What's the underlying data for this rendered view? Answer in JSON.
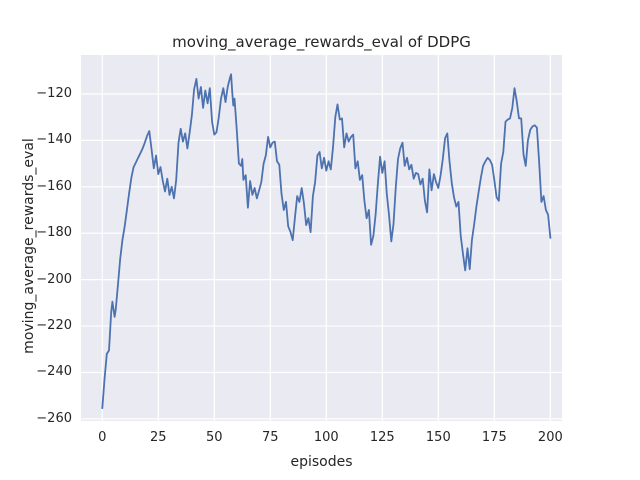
{
  "figure": {
    "background": "#ffffff"
  },
  "chart_data": {
    "type": "line",
    "title": "moving_average_rewards_eval of DDPG",
    "xlabel": "episodes",
    "ylabel": "moving_average_rewards_eval",
    "x_ticks": [
      0,
      25,
      50,
      75,
      100,
      125,
      150,
      175,
      200
    ],
    "x_tick_labels": [
      "0",
      "25",
      "50",
      "75",
      "100",
      "125",
      "150",
      "175",
      "200"
    ],
    "y_ticks": [
      -120,
      -140,
      -160,
      -180,
      -200,
      -220,
      -240,
      -260
    ],
    "y_tick_labels": [
      "−120",
      "−140",
      "−160",
      "−180",
      "−200",
      "−220",
      "−240",
      "−260"
    ],
    "xlim": [
      -9.5,
      205.2
    ],
    "ylim": [
      -260.9,
      -103.2
    ],
    "grid": true,
    "legend": "none",
    "plot_bg": "#eaeaf2",
    "grid_color": "#ffffff",
    "line_color": "#4c72b0",
    "text_color": "#262626",
    "series": [
      {
        "name": "moving_average_rewards_eval",
        "points": [
          [
            0,
            -255.4
          ],
          [
            1,
            -243
          ],
          [
            2,
            -232
          ],
          [
            3,
            -230.5
          ],
          [
            4,
            -214
          ],
          [
            4.5,
            -209.5
          ],
          [
            5.5,
            -216
          ],
          [
            6,
            -213
          ],
          [
            7,
            -202
          ],
          [
            8,
            -191
          ],
          [
            9,
            -183
          ],
          [
            10,
            -177
          ],
          [
            11,
            -170
          ],
          [
            12,
            -162.5
          ],
          [
            13,
            -156
          ],
          [
            14,
            -151.5
          ],
          [
            15,
            -149.5
          ],
          [
            16,
            -147.5
          ],
          [
            17,
            -145.5
          ],
          [
            18,
            -143.5
          ],
          [
            19,
            -141
          ],
          [
            20,
            -138
          ],
          [
            21,
            -136
          ],
          [
            22,
            -144
          ],
          [
            23,
            -152
          ],
          [
            24,
            -146.5
          ],
          [
            25,
            -154.5
          ],
          [
            26,
            -151.5
          ],
          [
            27,
            -157.5
          ],
          [
            28,
            -162
          ],
          [
            29,
            -156.5
          ],
          [
            30,
            -163.5
          ],
          [
            31,
            -160
          ],
          [
            32,
            -165
          ],
          [
            33,
            -157
          ],
          [
            34,
            -141
          ],
          [
            35,
            -135
          ],
          [
            36,
            -140.5
          ],
          [
            37,
            -137
          ],
          [
            38,
            -143.5
          ],
          [
            39,
            -136.5
          ],
          [
            40,
            -129
          ],
          [
            41,
            -118
          ],
          [
            42,
            -113.5
          ],
          [
            43,
            -122
          ],
          [
            44,
            -117
          ],
          [
            45,
            -126
          ],
          [
            46,
            -118.5
          ],
          [
            47,
            -124
          ],
          [
            48,
            -117.5
          ],
          [
            49,
            -132
          ],
          [
            50,
            -137.5
          ],
          [
            51,
            -136.5
          ],
          [
            52,
            -130
          ],
          [
            53,
            -122
          ],
          [
            54,
            -117.5
          ],
          [
            55,
            -123.5
          ],
          [
            56,
            -117
          ],
          [
            57,
            -113
          ],
          [
            57.5,
            -111.5
          ],
          [
            58,
            -119
          ],
          [
            58.5,
            -125
          ],
          [
            59,
            -122
          ],
          [
            60,
            -135
          ],
          [
            61,
            -150
          ],
          [
            62,
            -151
          ],
          [
            62.5,
            -148
          ],
          [
            63,
            -157
          ],
          [
            64,
            -155
          ],
          [
            65,
            -169
          ],
          [
            66,
            -157.5
          ],
          [
            67,
            -163.5
          ],
          [
            68,
            -160.5
          ],
          [
            69,
            -165
          ],
          [
            70,
            -161.5
          ],
          [
            71,
            -158
          ],
          [
            72,
            -150
          ],
          [
            73,
            -146.5
          ],
          [
            74,
            -138.5
          ],
          [
            75,
            -143
          ],
          [
            76,
            -141
          ],
          [
            77,
            -140.5
          ],
          [
            78,
            -149
          ],
          [
            79,
            -150.5
          ],
          [
            80,
            -163
          ],
          [
            81,
            -170
          ],
          [
            82,
            -166.5
          ],
          [
            83,
            -177
          ],
          [
            84,
            -179.5
          ],
          [
            85,
            -183
          ],
          [
            86,
            -173
          ],
          [
            87,
            -164
          ],
          [
            88,
            -166.5
          ],
          [
            89,
            -160.5
          ],
          [
            90,
            -167
          ],
          [
            91,
            -176.5
          ],
          [
            92,
            -173.5
          ],
          [
            93,
            -179.5
          ],
          [
            94,
            -164
          ],
          [
            95,
            -158
          ],
          [
            96,
            -146.5
          ],
          [
            97,
            -145
          ],
          [
            98,
            -152
          ],
          [
            99,
            -147.5
          ],
          [
            100,
            -153
          ],
          [
            101,
            -149
          ],
          [
            102,
            -152.5
          ],
          [
            103,
            -143
          ],
          [
            104,
            -130
          ],
          [
            105,
            -124.5
          ],
          [
            106,
            -131
          ],
          [
            107,
            -130.5
          ],
          [
            108,
            -143
          ],
          [
            109,
            -137
          ],
          [
            110,
            -140.5
          ],
          [
            111,
            -138.5
          ],
          [
            112,
            -137.5
          ],
          [
            113,
            -152
          ],
          [
            114,
            -149
          ],
          [
            115,
            -157
          ],
          [
            116,
            -155
          ],
          [
            117,
            -166
          ],
          [
            118,
            -173.5
          ],
          [
            119,
            -170
          ],
          [
            120,
            -185
          ],
          [
            121,
            -181
          ],
          [
            122,
            -172
          ],
          [
            123,
            -159
          ],
          [
            124,
            -147
          ],
          [
            125,
            -154
          ],
          [
            126,
            -149
          ],
          [
            127,
            -163
          ],
          [
            128,
            -172
          ],
          [
            129,
            -183.5
          ],
          [
            130,
            -176
          ],
          [
            131,
            -160
          ],
          [
            132,
            -148
          ],
          [
            133,
            -143.5
          ],
          [
            134,
            -141
          ],
          [
            135,
            -151
          ],
          [
            136,
            -147.5
          ],
          [
            137,
            -152.5
          ],
          [
            138,
            -150.5
          ],
          [
            139,
            -156.5
          ],
          [
            140,
            -154
          ],
          [
            141,
            -154.5
          ],
          [
            142,
            -159
          ],
          [
            143,
            -156.5
          ],
          [
            144,
            -166
          ],
          [
            145,
            -171
          ],
          [
            146,
            -152.5
          ],
          [
            147,
            -161.5
          ],
          [
            148,
            -154.5
          ],
          [
            149,
            -158
          ],
          [
            150,
            -160.5
          ],
          [
            151,
            -155
          ],
          [
            152,
            -148
          ],
          [
            153,
            -139
          ],
          [
            154,
            -137
          ],
          [
            155,
            -149
          ],
          [
            156,
            -158.5
          ],
          [
            157,
            -164.5
          ],
          [
            158,
            -168.5
          ],
          [
            159,
            -166.5
          ],
          [
            160,
            -181
          ],
          [
            161,
            -189
          ],
          [
            162,
            -196
          ],
          [
            163,
            -186.5
          ],
          [
            164,
            -195.5
          ],
          [
            165,
            -183
          ],
          [
            166,
            -176
          ],
          [
            167,
            -168.5
          ],
          [
            168,
            -162
          ],
          [
            169,
            -156
          ],
          [
            170,
            -151
          ],
          [
            171,
            -149
          ],
          [
            172,
            -147.5
          ],
          [
            173,
            -148.5
          ],
          [
            174,
            -150.5
          ],
          [
            175,
            -157
          ],
          [
            176,
            -164.5
          ],
          [
            177,
            -166
          ],
          [
            178,
            -150
          ],
          [
            179,
            -145
          ],
          [
            180,
            -132
          ],
          [
            181,
            -131
          ],
          [
            182,
            -130.5
          ],
          [
            183,
            -126
          ],
          [
            184,
            -117.5
          ],
          [
            185,
            -123
          ],
          [
            186,
            -130.5
          ],
          [
            187,
            -130.5
          ],
          [
            188,
            -146
          ],
          [
            189,
            -151
          ],
          [
            190,
            -140
          ],
          [
            191,
            -135.5
          ],
          [
            192,
            -134
          ],
          [
            193,
            -133.5
          ],
          [
            194,
            -134.5
          ],
          [
            195,
            -149
          ],
          [
            196,
            -166.5
          ],
          [
            197,
            -164
          ],
          [
            198,
            -170
          ],
          [
            199,
            -172
          ],
          [
            200,
            -182
          ]
        ]
      }
    ]
  }
}
